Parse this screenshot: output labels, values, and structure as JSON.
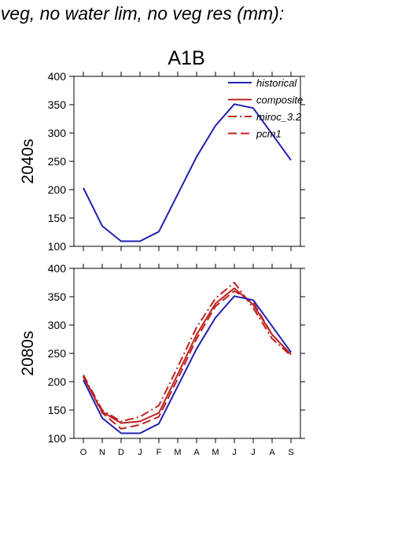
{
  "header": {
    "text": "f veg, no water lim, no veg res (mm):"
  },
  "figure": {
    "title": "A1B"
  },
  "colors": {
    "historical": "#2020b0",
    "composite": "#c02020",
    "miroc_3.2": "#c02020",
    "pcm1": "#c02020"
  },
  "chart_data": [
    {
      "type": "line",
      "panel_label": "2040s",
      "categories": [
        "O",
        "N",
        "D",
        "J",
        "F",
        "M",
        "A",
        "M",
        "J",
        "J",
        "A",
        "S"
      ],
      "ylim": [
        100,
        400
      ],
      "yticks": [
        100,
        150,
        200,
        250,
        300,
        350,
        400
      ],
      "grid": false,
      "legend_position": "top-right",
      "legend": [
        "historical",
        "composite",
        "miroc_3.2",
        "pcm1"
      ],
      "series": [
        {
          "name": "historical",
          "style": "solid",
          "values": [
            203,
            136,
            109,
            109,
            126,
            192,
            258,
            313,
            351,
            344,
            298,
            252
          ]
        }
      ]
    },
    {
      "type": "line",
      "panel_label": "2080s",
      "categories": [
        "O",
        "N",
        "D",
        "J",
        "F",
        "M",
        "A",
        "M",
        "J",
        "J",
        "A",
        "S"
      ],
      "ylim": [
        100,
        400
      ],
      "yticks": [
        100,
        150,
        200,
        250,
        300,
        350,
        400
      ],
      "grid": false,
      "series": [
        {
          "name": "historical",
          "style": "solid",
          "values": [
            203,
            136,
            109,
            109,
            126,
            192,
            258,
            313,
            351,
            344,
            298,
            252
          ]
        },
        {
          "name": "composite",
          "style": "solid",
          "values": [
            208,
            147,
            127,
            130,
            145,
            213,
            283,
            338,
            365,
            336,
            283,
            248
          ]
        },
        {
          "name": "miroc_3.2",
          "style": "dashdot",
          "values": [
            212,
            150,
            130,
            138,
            158,
            226,
            296,
            347,
            375,
            330,
            276,
            246
          ]
        },
        {
          "name": "pcm1",
          "style": "dash",
          "values": [
            210,
            145,
            117,
            124,
            138,
            205,
            276,
            333,
            360,
            340,
            283,
            248
          ]
        }
      ]
    }
  ]
}
